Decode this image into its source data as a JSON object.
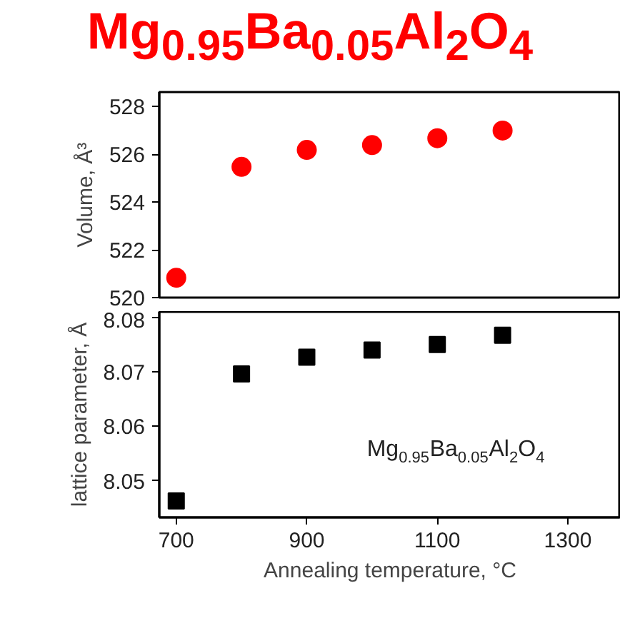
{
  "chart_data": [
    {
      "type": "scatter",
      "title": "Mg$_{0.95}$Ba$_{0.05}$Al$_{2}$O$_{4}$",
      "ylabel": "Volume, Å³",
      "x": [
        700,
        800,
        900,
        1000,
        1100,
        1200
      ],
      "series": [
        {
          "color": "#ff0000",
          "values": [
            520.83,
            525.47,
            526.18,
            526.38,
            526.67,
            526.99
          ]
        }
      ],
      "marker": "circle",
      "xlim": [
        674,
        1381
      ],
      "ylim": [
        520,
        528.6
      ],
      "yticks": [
        520,
        522,
        524,
        526,
        528
      ],
      "tick_labels": "y",
      "grid": false
    },
    {
      "type": "scatter",
      "ylabel": "lattice parameter, Å",
      "xlabel": "Annealing temperature, °C",
      "x": [
        700,
        800,
        900,
        1000,
        1100,
        1200
      ],
      "series": [
        {
          "color": "#000000",
          "values": [
            8.0463,
            8.0696,
            8.0727,
            8.074,
            8.075,
            8.0767
          ]
        }
      ],
      "marker": "square",
      "xlim": [
        674,
        1381
      ],
      "ylim": [
        8.0433,
        8.081
      ],
      "xticks": [
        700,
        900,
        1100,
        1300
      ],
      "yticks": [
        8.05,
        8.06,
        8.07,
        8.08
      ],
      "grid": false,
      "annotations": [
        "Mg$_{0.95}$Ba$_{0.05}$Al$_{2}$O$_{4}$"
      ]
    }
  ]
}
